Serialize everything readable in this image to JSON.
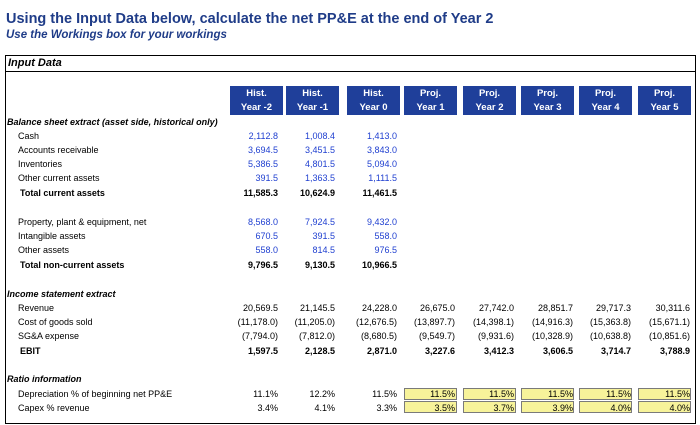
{
  "title": "Using the Input Data below, calculate the net PP&E at the end of Year 2",
  "subtitle": "Use the Workings box for your workings",
  "box_title": "Input Data",
  "columns": [
    {
      "l1": "Hist.",
      "l2": "Year -2"
    },
    {
      "l1": "Hist.",
      "l2": "Year -1"
    },
    {
      "l1": "Hist.",
      "l2": "Year 0"
    },
    {
      "l1": "Proj.",
      "l2": "Year 1"
    },
    {
      "l1": "Proj.",
      "l2": "Year 2"
    },
    {
      "l1": "Proj.",
      "l2": "Year 3"
    },
    {
      "l1": "Proj.",
      "l2": "Year 4"
    },
    {
      "l1": "Proj.",
      "l2": "Year 5"
    }
  ],
  "sections": {
    "bs": "Balance sheet extract (asset side, historical only)",
    "is": "Income statement extract",
    "ratio": "Ratio information"
  },
  "rows": [
    {
      "label": "Cash",
      "values": [
        "2,112.8",
        "1,008.4",
        "1,413.0"
      ]
    },
    {
      "label": "Accounts receivable",
      "values": [
        "3,694.5",
        "3,451.5",
        "3,843.0"
      ]
    },
    {
      "label": "Inventories",
      "values": [
        "5,386.5",
        "4,801.5",
        "5,094.0"
      ]
    },
    {
      "label": "Other current assets",
      "values": [
        "391.5",
        "1,363.5",
        "1,111.5"
      ]
    },
    {
      "label": "Total current assets",
      "values": [
        "11,585.3",
        "10,624.9",
        "11,461.5"
      ]
    },
    {
      "label": "Property, plant & equipment, net",
      "values": [
        "8,568.0",
        "7,924.5",
        "9,432.0"
      ]
    },
    {
      "label": "Intangible assets",
      "values": [
        "670.5",
        "391.5",
        "558.0"
      ]
    },
    {
      "label": "Other assets",
      "values": [
        "558.0",
        "814.5",
        "976.5"
      ]
    },
    {
      "label": "Total non-current assets",
      "values": [
        "9,796.5",
        "9,130.5",
        "10,966.5"
      ]
    },
    {
      "label": "Revenue",
      "values": [
        "20,569.5",
        "21,145.5",
        "24,228.0",
        "26,675.0",
        "27,742.0",
        "28,851.7",
        "29,717.3",
        "30,311.6"
      ]
    },
    {
      "label": "Cost of goods sold",
      "values": [
        "(11,178.0)",
        "(11,205.0)",
        "(12,676.5)",
        "(13,897.7)",
        "(14,398.1)",
        "(14,916.3)",
        "(15,363.8)",
        "(15,671.1)"
      ]
    },
    {
      "label": "SG&A expense",
      "values": [
        "(7,794.0)",
        "(7,812.0)",
        "(8,680.5)",
        "(9,549.7)",
        "(9,931.6)",
        "(10,328.9)",
        "(10,638.8)",
        "(10,851.6)"
      ]
    },
    {
      "label": "EBIT",
      "values": [
        "1,597.5",
        "2,128.5",
        "2,871.0",
        "3,227.6",
        "3,412.3",
        "3,606.5",
        "3,714.7",
        "3,788.9"
      ]
    },
    {
      "label": "Depreciation % of beginning net PP&E",
      "values": [
        "11.1%",
        "12.2%",
        "11.5%",
        "11.5%",
        "11.5%",
        "11.5%",
        "11.5%",
        "11.5%"
      ]
    },
    {
      "label": "Capex % revenue",
      "values": [
        "3.4%",
        "4.1%",
        "3.3%",
        "3.5%",
        "3.7%",
        "3.9%",
        "4.0%",
        "4.0%"
      ]
    }
  ],
  "colors": {
    "header_bg": "#1f3f9a",
    "title": "#1f3c88",
    "input_blue": "#1f3fd0",
    "highlight": "#f7f39a"
  }
}
